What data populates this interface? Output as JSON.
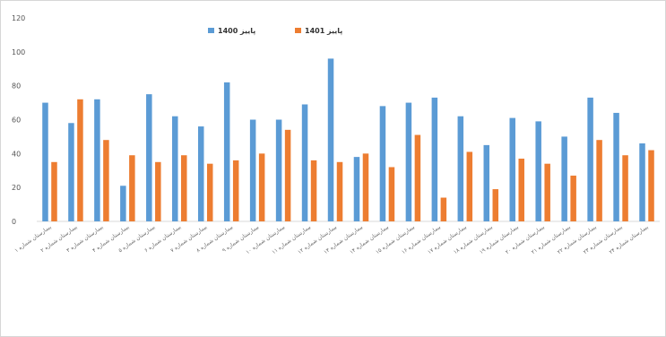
{
  "chart_data": {
    "type": "bar",
    "ylim": [
      0,
      120
    ],
    "yticks": [
      0,
      20,
      40,
      60,
      80,
      100,
      120
    ],
    "grid": false,
    "legend_position": "top-center",
    "categories": [
      "بیمارستان شماره ۱",
      "بیمارستان شماره ۲",
      "بیمارستان شماره ۳",
      "بیمارستان شماره ۴",
      "بیمارستان شماره ۵",
      "بیمارستان شماره ۶",
      "بیمارستان شماره ۷",
      "بیمارستان شماره ۸",
      "بیمارستان شماره ۹",
      "بیمارستان شماره ۱۰",
      "بیمارستان شماره ۱۱",
      "بیمارستان شماره ۱۲",
      "بیمارستان شماره ۱۳",
      "بیمارستان شماره ۱۴",
      "بیمارستان شماره ۱۵",
      "بیمارستان شماره ۱۶",
      "بیمارستان شماره ۱۷",
      "بیمارستان شماره ۱۸",
      "بیمارستان شماره ۱۹",
      "بیمارستان شماره ۲۰",
      "بیمارستان شماره ۲۱",
      "بیمارستان شماره ۲۲",
      "بیمارستان شماره ۲۳",
      "بیمارستان شماره ۲۴"
    ],
    "series": [
      {
        "name": "پاییز 1400",
        "color": "#5b9bd5",
        "values": [
          70,
          58,
          72,
          21,
          75,
          62,
          56,
          82,
          60,
          60,
          69,
          96,
          38,
          68,
          70,
          73,
          62,
          45,
          61,
          59,
          50,
          73,
          64,
          46
        ]
      },
      {
        "name": "پاییز 1401",
        "color": "#ed7d31",
        "values": [
          35,
          72,
          48,
          39,
          35,
          39,
          34,
          36,
          40,
          54,
          36,
          35,
          40,
          32,
          51,
          14,
          41,
          19,
          37,
          34,
          27,
          48,
          39,
          42
        ]
      }
    ]
  }
}
